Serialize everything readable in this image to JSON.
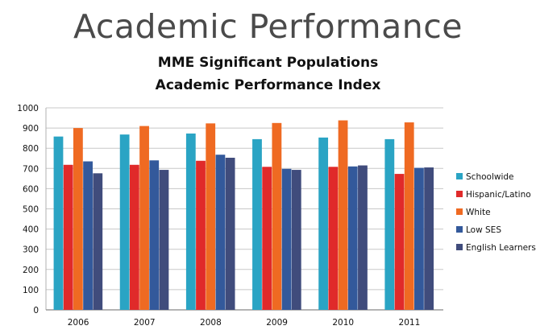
{
  "header": {
    "title": "Academic Performance"
  },
  "chart_data": {
    "type": "bar",
    "title": "MME Significant Populations",
    "subtitle": "Academic Performance Index",
    "xlabel": "",
    "ylabel": "",
    "ylim": [
      0,
      1000
    ],
    "yticks": [
      0,
      100,
      200,
      300,
      400,
      500,
      600,
      700,
      800,
      900,
      1000
    ],
    "grid": true,
    "legend_position": "right",
    "categories": [
      "2006",
      "2007",
      "2008",
      "2009",
      "2010",
      "2011"
    ],
    "series": [
      {
        "name": "Schoolwide",
        "color": "#2aa4c4",
        "values": [
          858,
          868,
          873,
          845,
          853,
          845
        ]
      },
      {
        "name": "Hispanic/Latino",
        "color": "#e02a2a",
        "values": [
          718,
          718,
          738,
          708,
          708,
          673
        ]
      },
      {
        "name": "White",
        "color": "#ef6a22",
        "values": [
          900,
          910,
          923,
          925,
          938,
          928
        ]
      },
      {
        "name": "Low SES",
        "color": "#33599b",
        "values": [
          735,
          740,
          768,
          698,
          710,
          703
        ]
      },
      {
        "name": "English Learners",
        "color": "#404c7c",
        "values": [
          676,
          693,
          753,
          693,
          715,
          705
        ]
      }
    ]
  }
}
